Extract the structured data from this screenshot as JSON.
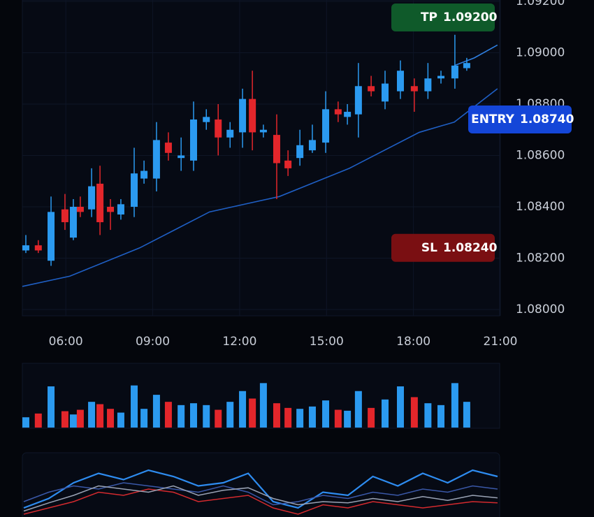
{
  "chart_data": [
    {
      "type": "candlestick",
      "xlim": [
        4.5,
        21
      ],
      "xticks": [
        {
          "value": 6,
          "label": "06:00"
        },
        {
          "value": 9,
          "label": "09:00"
        },
        {
          "value": 12,
          "label": "12:00"
        },
        {
          "value": 15,
          "label": "15:00"
        },
        {
          "value": 18,
          "label": "18:00"
        },
        {
          "value": 21,
          "label": "21:00"
        }
      ],
      "ylim": [
        1.08,
        1.092
      ],
      "yticks": [
        {
          "value": 1.08,
          "label": "1.08000"
        },
        {
          "value": 1.082,
          "label": "1.08200"
        },
        {
          "value": 1.084,
          "label": "1.08400"
        },
        {
          "value": 1.086,
          "label": "1.08600"
        },
        {
          "value": 1.088,
          "label": "1.08800"
        },
        {
          "value": 1.09,
          "label": "1.09000"
        },
        {
          "value": 1.092,
          "label": "1.09200"
        }
      ],
      "grid": true,
      "up_color": "#2b9af0",
      "down_color": "#e3262b",
      "x": [
        4.62,
        5.05,
        5.49,
        5.97,
        6.26,
        6.5,
        6.89,
        7.18,
        7.54,
        7.9,
        8.36,
        8.7,
        9.13,
        9.54,
        9.98,
        10.41,
        10.85,
        11.26,
        11.67,
        12.1,
        12.44,
        12.82,
        13.28,
        13.67,
        14.08,
        14.51,
        14.97,
        15.4,
        15.72,
        16.1,
        16.54,
        17.02,
        17.55,
        18.03,
        18.5,
        18.95,
        19.43,
        19.84
      ],
      "open": [
        1.0823,
        1.0825,
        1.0819,
        1.0839,
        1.0828,
        1.084,
        1.0839,
        1.0849,
        1.084,
        1.0837,
        1.084,
        1.0851,
        1.0851,
        1.0865,
        1.0859,
        1.0858,
        1.0873,
        1.0874,
        1.0867,
        1.0869,
        1.0882,
        1.0869,
        1.0868,
        1.0858,
        1.0859,
        1.0862,
        1.0865,
        1.0878,
        1.0875,
        1.0876,
        1.0887,
        1.0881,
        1.0885,
        1.0887,
        1.0885,
        1.089,
        1.089,
        1.0894
      ],
      "high": [
        1.0829,
        1.0827,
        1.0844,
        1.0845,
        1.0843,
        1.0844,
        1.0855,
        1.0856,
        1.0843,
        1.0843,
        1.0863,
        1.0858,
        1.0873,
        1.0869,
        1.0867,
        1.0881,
        1.0878,
        1.088,
        1.0873,
        1.0886,
        1.0893,
        1.0872,
        1.0876,
        1.0862,
        1.087,
        1.0872,
        1.0885,
        1.0881,
        1.088,
        1.0896,
        1.0891,
        1.0893,
        1.0897,
        1.089,
        1.0896,
        1.0893,
        1.0907,
        1.0898
      ],
      "low": [
        1.0822,
        1.0822,
        1.0817,
        1.0831,
        1.0827,
        1.0836,
        1.0836,
        1.0829,
        1.0831,
        1.0835,
        1.0836,
        1.0849,
        1.0846,
        1.0858,
        1.0854,
        1.0854,
        1.087,
        1.086,
        1.0863,
        1.0863,
        1.0862,
        1.0867,
        1.0843,
        1.0852,
        1.0856,
        1.0861,
        1.0861,
        1.0873,
        1.0872,
        1.0867,
        1.0883,
        1.0878,
        1.0882,
        1.0877,
        1.0882,
        1.0888,
        1.0886,
        1.0893
      ],
      "close": [
        1.0825,
        1.0823,
        1.0838,
        1.0834,
        1.084,
        1.0838,
        1.0848,
        1.0834,
        1.0838,
        1.0841,
        1.0853,
        1.0854,
        1.0866,
        1.0861,
        1.086,
        1.0874,
        1.0875,
        1.0867,
        1.087,
        1.0882,
        1.0869,
        1.087,
        1.0857,
        1.0855,
        1.0864,
        1.0866,
        1.0878,
        1.0876,
        1.0877,
        1.0887,
        1.0885,
        1.0888,
        1.0893,
        1.0885,
        1.089,
        1.0891,
        1.0895,
        1.0896
      ],
      "volume": {
        "ylim": [
          0,
          100
        ],
        "values": [
          22,
          30,
          88,
          35,
          28,
          38,
          55,
          50,
          40,
          32,
          90,
          40,
          70,
          55,
          48,
          52,
          48,
          38,
          55,
          78,
          62,
          95,
          52,
          42,
          40,
          45,
          58,
          38,
          36,
          78,
          42,
          60,
          88,
          65,
          52,
          48,
          95,
          55
        ]
      },
      "lines": [
        {
          "color": "#1f5fc4",
          "x": [
            4.5,
            6.14,
            8.55,
            10.96,
            13.37,
            15.79,
            18.2,
            19.41,
            20.9
          ],
          "values": [
            1.0809,
            1.0813,
            1.0824,
            1.0838,
            1.0844,
            1.0855,
            1.0869,
            1.0873,
            1.0886
          ]
        },
        {
          "color": "#2f7fe0",
          "x": [
            19.41,
            20.1,
            20.9
          ],
          "values": [
            1.0895,
            1.0898,
            1.0903
          ]
        }
      ],
      "annotations": [
        {
          "label": "TP",
          "value": 1.092,
          "value_label": "1.09200",
          "color": "#0f5a2a"
        },
        {
          "label": "ENTRY",
          "value": 1.0874,
          "value_label": "1.08740",
          "color": "#1446d8"
        },
        {
          "label": "SL",
          "value": 1.0824,
          "value_label": "1.08240",
          "color": "#7a0f12"
        }
      ]
    },
    {
      "type": "line",
      "ylim": [
        0,
        100
      ],
      "series": [
        {
          "color": "#2e8cf0",
          "values": [
            20,
            35,
            60,
            75,
            65,
            80,
            70,
            55,
            60,
            75,
            30,
            20,
            45,
            40,
            70,
            55,
            75,
            60,
            80,
            70
          ]
        },
        {
          "color": "#d42a2e",
          "values": [
            10,
            20,
            30,
            45,
            40,
            50,
            45,
            30,
            35,
            40,
            20,
            10,
            25,
            20,
            30,
            25,
            20,
            25,
            30,
            28
          ]
        },
        {
          "color": "#3a58a8",
          "values": [
            30,
            45,
            55,
            50,
            60,
            55,
            50,
            45,
            55,
            45,
            25,
            30,
            40,
            35,
            45,
            40,
            50,
            45,
            55,
            50
          ]
        },
        {
          "color": "#9aa3b5",
          "values": [
            15,
            28,
            40,
            55,
            50,
            45,
            55,
            40,
            48,
            52,
            35,
            25,
            30,
            28,
            35,
            30,
            38,
            32,
            40,
            36
          ]
        }
      ]
    }
  ]
}
